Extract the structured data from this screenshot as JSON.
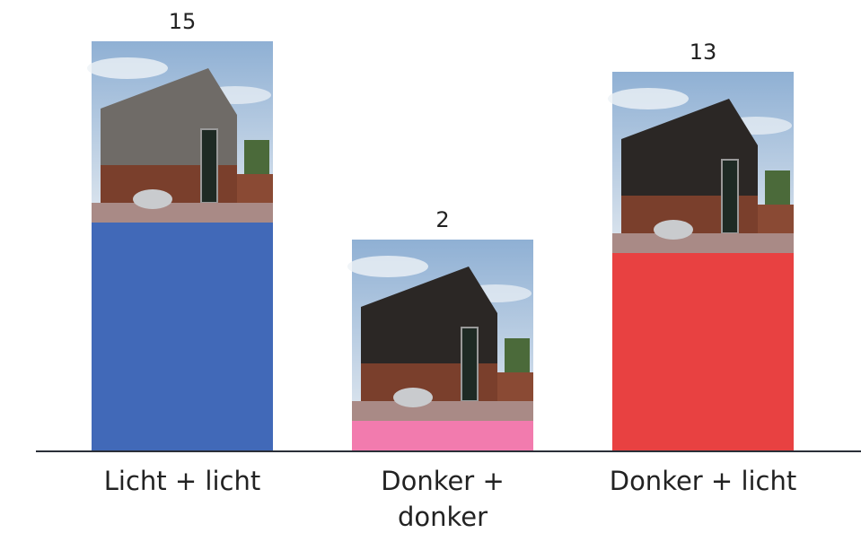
{
  "chart_data": {
    "type": "bar",
    "categories": [
      "Licht + licht",
      "Donker + donker",
      "Donker + licht"
    ],
    "values": [
      15,
      2,
      13
    ],
    "colors": [
      "#4169b8",
      "#f27bae",
      "#e84141"
    ],
    "ylim": [
      0,
      15
    ]
  }
}
